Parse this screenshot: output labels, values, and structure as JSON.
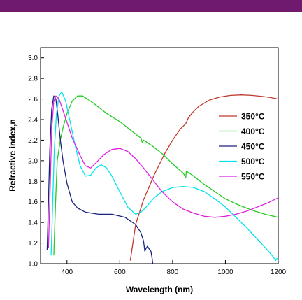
{
  "header": {
    "band_color": "#6f1a6f"
  },
  "chart_data": {
    "type": "line",
    "xlabel": "Wavelength  (nm)",
    "ylabel": "Refractive index,n",
    "xlim": [
      300,
      1200
    ],
    "ylim": [
      1.0,
      3.1
    ],
    "x_ticks": [
      400,
      600,
      800,
      1000,
      1200
    ],
    "y_ticks": [
      1.0,
      1.2,
      1.4,
      1.6,
      1.8,
      2.0,
      2.2,
      2.4,
      2.6,
      2.8,
      3.0
    ],
    "y_tick_labels": [
      "1.0",
      "1.2",
      "1.4",
      "1.6",
      "1.8",
      "2.0",
      "2.2",
      "2.4",
      "2.6",
      "2.8",
      "3.0"
    ],
    "grid": false,
    "legend": "right",
    "series": [
      {
        "name": "350°C",
        "color": "#c0392b",
        "points": [
          [
            640,
            1.03
          ],
          [
            660,
            1.38
          ],
          [
            690,
            1.62
          ],
          [
            730,
            1.86
          ],
          [
            770,
            2.07
          ],
          [
            800,
            2.2
          ],
          [
            830,
            2.31
          ],
          [
            850,
            2.36
          ],
          [
            860,
            2.42
          ],
          [
            880,
            2.48
          ],
          [
            900,
            2.53
          ],
          [
            940,
            2.59
          ],
          [
            980,
            2.62
          ],
          [
            1020,
            2.635
          ],
          [
            1060,
            2.64
          ],
          [
            1100,
            2.635
          ],
          [
            1140,
            2.625
          ],
          [
            1170,
            2.615
          ],
          [
            1200,
            2.6
          ]
        ]
      },
      {
        "name": "400°C",
        "color": "#22cc22",
        "points": [
          [
            350,
            1.08
          ],
          [
            357,
            1.6
          ],
          [
            363,
            2.0
          ],
          [
            375,
            2.2
          ],
          [
            385,
            2.32
          ],
          [
            400,
            2.46
          ],
          [
            420,
            2.58
          ],
          [
            440,
            2.63
          ],
          [
            460,
            2.63
          ],
          [
            500,
            2.56
          ],
          [
            550,
            2.46
          ],
          [
            600,
            2.38
          ],
          [
            650,
            2.28
          ],
          [
            680,
            2.22
          ],
          [
            685,
            2.18
          ],
          [
            690,
            2.2
          ],
          [
            720,
            2.15
          ],
          [
            760,
            2.07
          ],
          [
            800,
            1.97
          ],
          [
            840,
            1.88
          ],
          [
            850,
            1.84
          ],
          [
            852,
            1.9
          ],
          [
            880,
            1.85
          ],
          [
            920,
            1.77
          ],
          [
            960,
            1.7
          ],
          [
            1000,
            1.63
          ],
          [
            1050,
            1.57
          ],
          [
            1100,
            1.52
          ],
          [
            1150,
            1.48
          ],
          [
            1200,
            1.45
          ]
        ]
      },
      {
        "name": "450°C",
        "color": "#1a237e",
        "points": [
          [
            325,
            1.13
          ],
          [
            330,
            1.6
          ],
          [
            335,
            2.1
          ],
          [
            342,
            2.5
          ],
          [
            350,
            2.63
          ],
          [
            358,
            2.6
          ],
          [
            365,
            2.45
          ],
          [
            375,
            2.2
          ],
          [
            385,
            2.0
          ],
          [
            400,
            1.78
          ],
          [
            420,
            1.6
          ],
          [
            440,
            1.54
          ],
          [
            470,
            1.5
          ],
          [
            520,
            1.48
          ],
          [
            570,
            1.48
          ],
          [
            620,
            1.45
          ],
          [
            660,
            1.38
          ],
          [
            680,
            1.3
          ],
          [
            690,
            1.22
          ],
          [
            695,
            1.12
          ],
          [
            700,
            1.15
          ],
          [
            705,
            1.17
          ],
          [
            712,
            1.14
          ],
          [
            718,
            1.12
          ],
          [
            722,
            1.06
          ],
          [
            725,
            1.0
          ]
        ]
      },
      {
        "name": "500°C",
        "color": "#00e5ee",
        "points": [
          [
            340,
            1.08
          ],
          [
            346,
            1.6
          ],
          [
            352,
            2.1
          ],
          [
            360,
            2.45
          ],
          [
            370,
            2.63
          ],
          [
            380,
            2.67
          ],
          [
            395,
            2.58
          ],
          [
            410,
            2.4
          ],
          [
            430,
            2.16
          ],
          [
            450,
            1.95
          ],
          [
            470,
            1.85
          ],
          [
            490,
            1.86
          ],
          [
            510,
            1.93
          ],
          [
            530,
            1.96
          ],
          [
            550,
            1.93
          ],
          [
            570,
            1.85
          ],
          [
            600,
            1.7
          ],
          [
            630,
            1.55
          ],
          [
            660,
            1.48
          ],
          [
            680,
            1.5
          ],
          [
            700,
            1.55
          ],
          [
            730,
            1.64
          ],
          [
            760,
            1.7
          ],
          [
            800,
            1.74
          ],
          [
            840,
            1.75
          ],
          [
            880,
            1.74
          ],
          [
            920,
            1.7
          ],
          [
            960,
            1.63
          ],
          [
            1000,
            1.55
          ],
          [
            1040,
            1.45
          ],
          [
            1080,
            1.35
          ],
          [
            1120,
            1.24
          ],
          [
            1160,
            1.13
          ],
          [
            1180,
            1.07
          ],
          [
            1190,
            1.03
          ],
          [
            1195,
            1.05
          ],
          [
            1200,
            1.03
          ]
        ]
      },
      {
        "name": "550°C",
        "color": "#e020e0",
        "points": [
          [
            330,
            1.15
          ],
          [
            336,
            1.7
          ],
          [
            342,
            2.3
          ],
          [
            350,
            2.58
          ],
          [
            358,
            2.63
          ],
          [
            370,
            2.6
          ],
          [
            390,
            2.45
          ],
          [
            420,
            2.22
          ],
          [
            450,
            2.05
          ],
          [
            470,
            1.95
          ],
          [
            490,
            1.93
          ],
          [
            510,
            1.98
          ],
          [
            540,
            2.06
          ],
          [
            570,
            2.11
          ],
          [
            600,
            2.12
          ],
          [
            630,
            2.09
          ],
          [
            660,
            2.02
          ],
          [
            690,
            1.93
          ],
          [
            720,
            1.83
          ],
          [
            760,
            1.7
          ],
          [
            800,
            1.6
          ],
          [
            840,
            1.53
          ],
          [
            880,
            1.49
          ],
          [
            920,
            1.46
          ],
          [
            960,
            1.45
          ],
          [
            1000,
            1.46
          ],
          [
            1040,
            1.48
          ],
          [
            1080,
            1.51
          ],
          [
            1120,
            1.55
          ],
          [
            1160,
            1.59
          ],
          [
            1200,
            1.64
          ]
        ]
      }
    ]
  }
}
